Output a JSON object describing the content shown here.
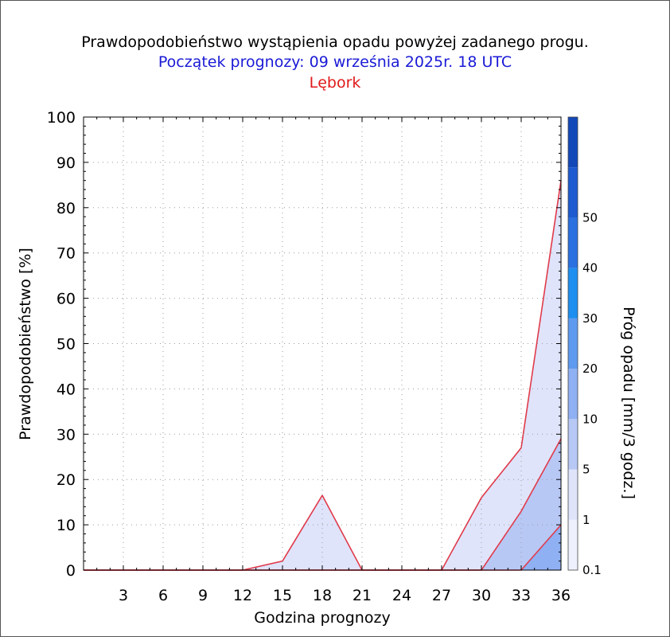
{
  "title": "Prawdopodobieństwo wystąpienia opadu powyżej zadanego progu.",
  "subtitle": "Początek prognozy: 09 września 2025r. 18 UTC",
  "location": "Lębork",
  "colors": {
    "title": "#000000",
    "subtitle": "#1a1ad6",
    "location": "#e01a1a",
    "contour_line": "#e03a4a",
    "fill_0_1": "#dfe4fb",
    "fill_1": "#b8c8f5",
    "fill_5": "#8fb0f2"
  },
  "chart_data": {
    "type": "area",
    "xlabel": "Godzina prognozy",
    "ylabel": "Prawdopodobieństwo [%]",
    "xlim": [
      0,
      36
    ],
    "ylim": [
      0,
      100
    ],
    "x_ticks": [
      3,
      6,
      9,
      12,
      15,
      18,
      21,
      24,
      27,
      30,
      33,
      36
    ],
    "y_ticks": [
      0,
      10,
      20,
      30,
      40,
      50,
      60,
      70,
      80,
      90,
      100
    ],
    "grid": true,
    "x": [
      0,
      3,
      6,
      9,
      12,
      15,
      18,
      21,
      24,
      27,
      30,
      33,
      36
    ],
    "series": [
      {
        "name": "0.1",
        "color": "#dfe4fb",
        "values": [
          0,
          0,
          0,
          0,
          0,
          2,
          16.5,
          0,
          0,
          0,
          16,
          27,
          86
        ]
      },
      {
        "name": "1",
        "color": "#b8c8f5",
        "values": [
          0,
          0,
          0,
          0,
          0,
          0,
          0,
          0,
          0,
          0,
          0,
          13,
          29
        ]
      },
      {
        "name": "5",
        "color": "#8fb0f2",
        "values": [
          0,
          0,
          0,
          0,
          0,
          0,
          0,
          0,
          0,
          0,
          0,
          0,
          10
        ]
      }
    ],
    "colorbar": {
      "title": "Próg opadu [mm/3 godz.]",
      "labels": [
        "0.1",
        "1",
        "5",
        "10",
        "20",
        "30",
        "40",
        "50"
      ],
      "colors": [
        "#eef0fd",
        "#dfe4fb",
        "#b8c8f5",
        "#8fb0f2",
        "#5e9bf0",
        "#1e8ff0",
        "#2a70e0",
        "#1e5ad0",
        "#1248b8"
      ]
    }
  }
}
